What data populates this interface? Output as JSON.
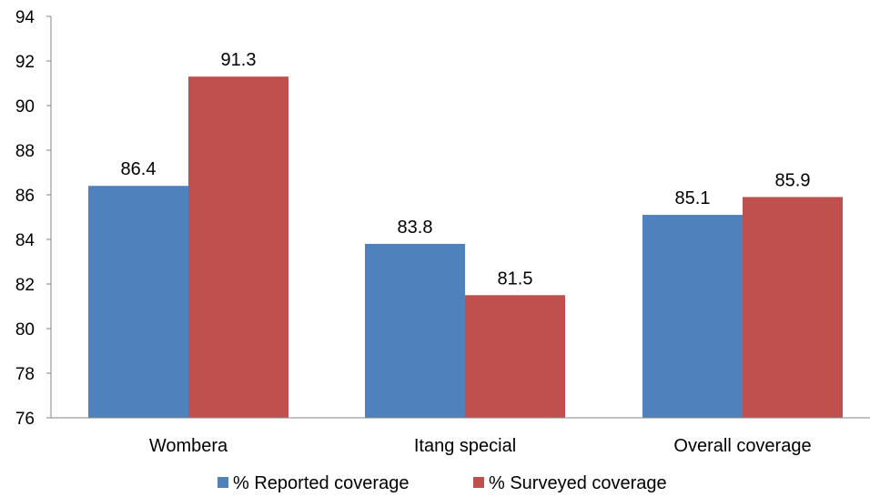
{
  "chart_data": {
    "type": "bar",
    "categories": [
      "Wombera",
      "Itang special",
      "Overall coverage"
    ],
    "series": [
      {
        "name": "% Reported coverage",
        "color": "#4F81BD",
        "values": [
          86.4,
          83.8,
          85.1
        ]
      },
      {
        "name": "% Surveyed coverage",
        "color": "#C0504D",
        "values": [
          91.3,
          81.5,
          85.9
        ]
      }
    ],
    "data_labels": [
      [
        "86.4",
        "83.8",
        "85.1"
      ],
      [
        "91.3",
        "81.5",
        "85.9"
      ]
    ],
    "y_ticks": [
      "76",
      "78",
      "80",
      "82",
      "84",
      "86",
      "88",
      "90",
      "92",
      "94"
    ],
    "ylim": [
      76,
      94
    ],
    "grid": false,
    "legend_position": "bottom"
  }
}
